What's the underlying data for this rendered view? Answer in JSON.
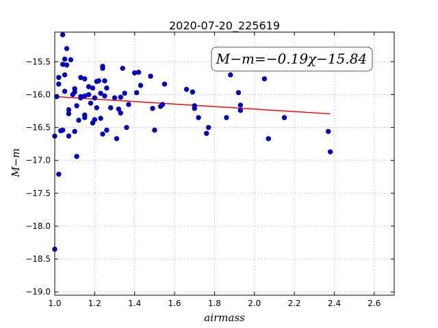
{
  "chart_data": {
    "type": "scatter",
    "title": "2020-07-20_225619",
    "xlabel": "airmass",
    "ylabel": "M−m",
    "annotation": "M−m=−0.19χ−15.84",
    "xlim": [
      1.0,
      2.7
    ],
    "ylim": [
      -19.05,
      -15.05
    ],
    "y_inverted": true,
    "grid": true,
    "x_ticks": [
      1.0,
      1.2,
      1.4,
      1.6,
      1.8,
      2.0,
      2.2,
      2.4,
      2.6
    ],
    "x_tick_labels": [
      "1.0",
      "1.2",
      "1.4",
      "1.6",
      "1.8",
      "2.0",
      "2.2",
      "2.4",
      "2.6"
    ],
    "y_ticks": [
      -15.5,
      -16.0,
      -16.5,
      -17.0,
      -17.5,
      -18.0,
      -18.5,
      -19.0
    ],
    "y_tick_labels": [
      "−15.5",
      "−16.0",
      "−16.5",
      "−17.0",
      "−17.5",
      "−18.0",
      "−18.5",
      "−19.0"
    ],
    "fit": {
      "slope": -0.19,
      "intercept": -15.84,
      "x_range": [
        1.01,
        2.38
      ]
    },
    "colors": {
      "points": "#0000cc",
      "points_edge": "#000088",
      "fit_line": "#ff0000",
      "grid": "#aaaaaa"
    },
    "points": [
      [
        1.0,
        -16.63
      ],
      [
        1.0,
        -18.35
      ],
      [
        1.01,
        -16.03
      ],
      [
        1.02,
        -15.84
      ],
      [
        1.02,
        -15.74
      ],
      [
        1.02,
        -17.21
      ],
      [
        1.03,
        -16.55
      ],
      [
        1.04,
        -16.54
      ],
      [
        1.04,
        -15.09
      ],
      [
        1.04,
        -15.54
      ],
      [
        1.05,
        -15.7
      ],
      [
        1.05,
        -15.95
      ],
      [
        1.05,
        -15.46
      ],
      [
        1.06,
        -15.3
      ],
      [
        1.06,
        -15.55
      ],
      [
        1.07,
        -16.23
      ],
      [
        1.07,
        -16.29
      ],
      [
        1.07,
        -16.63
      ],
      [
        1.08,
        -15.47
      ],
      [
        1.09,
        -16.0
      ],
      [
        1.1,
        -15.91
      ],
      [
        1.1,
        -16.56
      ],
      [
        1.1,
        -15.96
      ],
      [
        1.11,
        -16.94
      ],
      [
        1.11,
        -16.17
      ],
      [
        1.12,
        -16.39
      ],
      [
        1.13,
        -15.74
      ],
      [
        1.13,
        -16.03
      ],
      [
        1.13,
        -16.05
      ],
      [
        1.15,
        -15.76
      ],
      [
        1.15,
        -16.02
      ],
      [
        1.15,
        -16.35
      ],
      [
        1.15,
        -16.31
      ],
      [
        1.17,
        -16.0
      ],
      [
        1.17,
        -15.88
      ],
      [
        1.18,
        -16.13
      ],
      [
        1.19,
        -15.9
      ],
      [
        1.19,
        -16.43
      ],
      [
        1.2,
        -16.38
      ],
      [
        1.2,
        -16.05
      ],
      [
        1.21,
        -15.8
      ],
      [
        1.21,
        -16.2
      ],
      [
        1.22,
        -15.79
      ],
      [
        1.23,
        -15.98
      ],
      [
        1.23,
        -16.36
      ],
      [
        1.24,
        -15.57
      ],
      [
        1.24,
        -15.6
      ],
      [
        1.24,
        -16.6
      ],
      [
        1.25,
        -15.79
      ],
      [
        1.25,
        -16.02
      ],
      [
        1.26,
        -15.9
      ],
      [
        1.26,
        -16.54
      ],
      [
        1.28,
        -16.2
      ],
      [
        1.3,
        -16.05
      ],
      [
        1.31,
        -16.67
      ],
      [
        1.32,
        -16.22
      ],
      [
        1.33,
        -16.28
      ],
      [
        1.33,
        -16.04
      ],
      [
        1.34,
        -15.6
      ],
      [
        1.35,
        -15.98
      ],
      [
        1.36,
        -16.5
      ],
      [
        1.37,
        -16.15
      ],
      [
        1.4,
        -15.67
      ],
      [
        1.41,
        -15.97
      ],
      [
        1.42,
        -15.66
      ],
      [
        1.43,
        -15.86
      ],
      [
        1.48,
        -15.72
      ],
      [
        1.49,
        -16.21
      ],
      [
        1.5,
        -16.54
      ],
      [
        1.53,
        -16.18
      ],
      [
        1.54,
        -16.15
      ],
      [
        1.55,
        -15.84
      ],
      [
        1.66,
        -15.92
      ],
      [
        1.69,
        -15.96
      ],
      [
        1.7,
        -16.17
      ],
      [
        1.7,
        -16.21
      ],
      [
        1.72,
        -16.35
      ],
      [
        1.76,
        -16.59
      ],
      [
        1.77,
        -16.5
      ],
      [
        1.86,
        -16.35
      ],
      [
        1.88,
        -15.7
      ],
      [
        1.92,
        -15.97
      ],
      [
        1.93,
        -16.24
      ],
      [
        1.93,
        -16.16
      ],
      [
        2.05,
        -15.76
      ],
      [
        2.07,
        -16.67
      ],
      [
        2.15,
        -16.35
      ],
      [
        2.37,
        -16.56
      ],
      [
        2.38,
        -16.87
      ]
    ]
  }
}
